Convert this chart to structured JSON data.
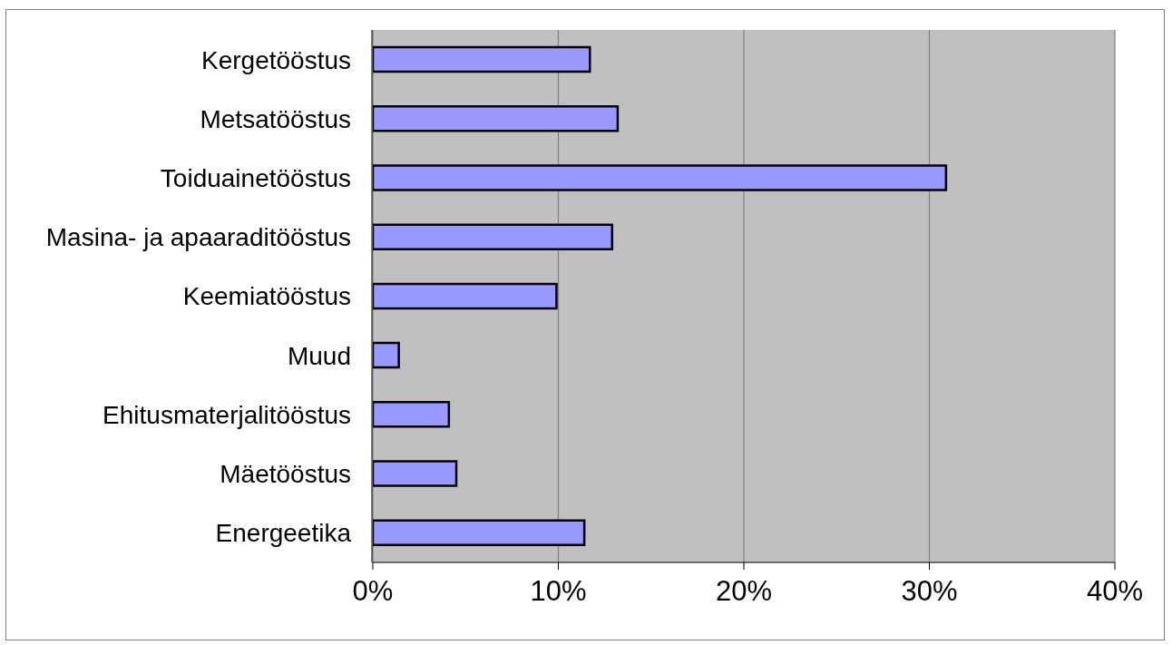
{
  "chart_data": {
    "type": "bar",
    "orientation": "horizontal",
    "categories": [
      "Kergetööstus",
      "Metsatööstus",
      "Toiduainetööstus",
      "Masina- ja apaaraditööstus",
      "Keemiatööstus",
      "Muud",
      "Ehitusmaterjalitööstus",
      "Mäetööstus",
      "Energeetika"
    ],
    "values": [
      11.7,
      13.2,
      30.9,
      12.9,
      9.9,
      1.4,
      4.1,
      4.5,
      11.4
    ],
    "color": "#9999ff",
    "xlim": [
      0,
      40
    ],
    "xticks": [
      {
        "value": 0,
        "label": "0%"
      },
      {
        "value": 10,
        "label": "10%"
      },
      {
        "value": 20,
        "label": "20%"
      },
      {
        "value": 30,
        "label": "30%"
      },
      {
        "value": 40,
        "label": "40%"
      }
    ],
    "grid": "x"
  }
}
